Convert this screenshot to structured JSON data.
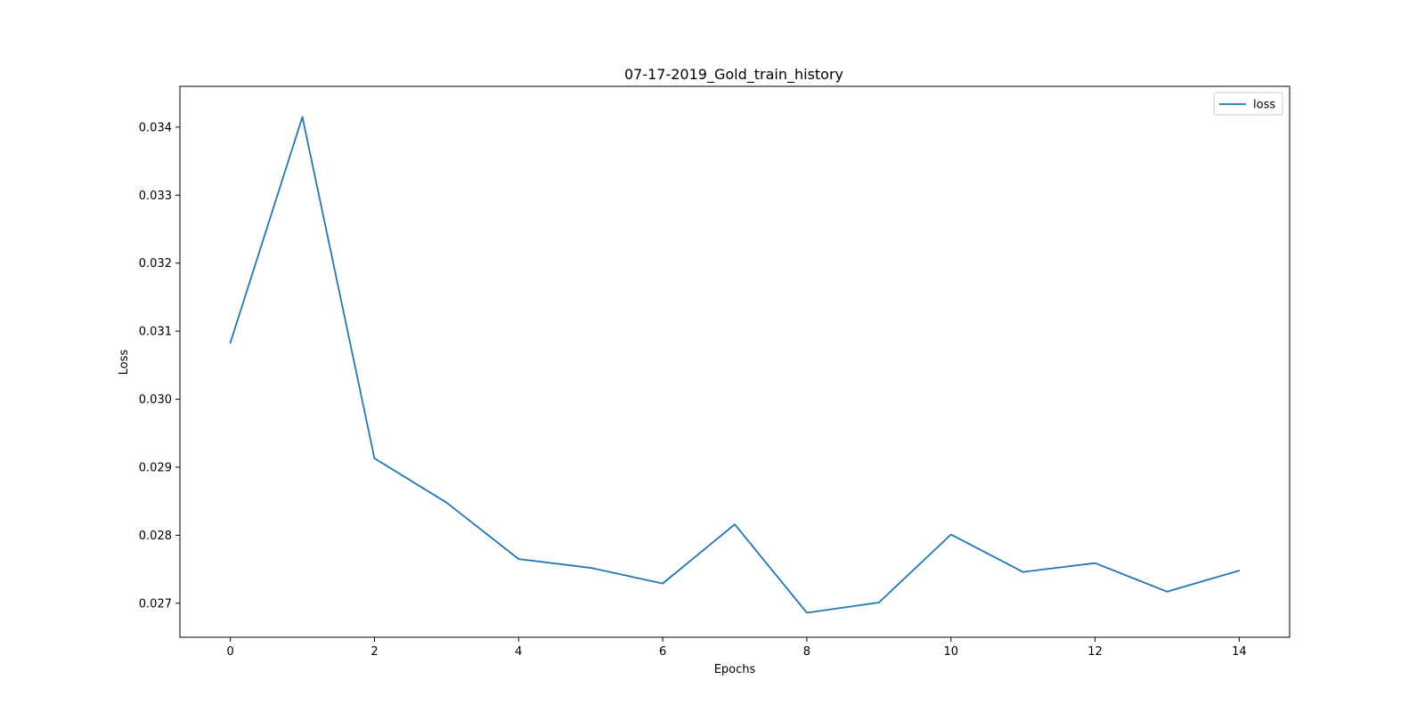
{
  "chart_data": {
    "type": "line",
    "title": "07-17-2019_Gold_train_history",
    "xlabel": "Epochs",
    "ylabel": "Loss",
    "xlim": [
      -0.7,
      14.7
    ],
    "ylim": [
      0.0265,
      0.0346
    ],
    "xticks": [
      0,
      2,
      4,
      6,
      8,
      10,
      12,
      14
    ],
    "xtick_labels": [
      "0",
      "2",
      "4",
      "6",
      "8",
      "10",
      "12",
      "14"
    ],
    "yticks": [
      0.027,
      0.028,
      0.029,
      0.03,
      0.031,
      0.032,
      0.033,
      0.034
    ],
    "ytick_labels": [
      "0.027",
      "0.028",
      "0.029",
      "0.030",
      "0.031",
      "0.032",
      "0.033",
      "0.034"
    ],
    "grid": false,
    "legend_position": "top-right",
    "series": [
      {
        "name": "loss",
        "color": "#1f77b4",
        "x": [
          0,
          1,
          2,
          3,
          4,
          5,
          6,
          7,
          8,
          9,
          10,
          11,
          12,
          13,
          14
        ],
        "values": [
          0.03083,
          0.03415,
          0.02913,
          0.02848,
          0.02765,
          0.02752,
          0.02729,
          0.02816,
          0.02686,
          0.02701,
          0.02801,
          0.02746,
          0.02759,
          0.02717,
          0.02748
        ]
      }
    ]
  }
}
